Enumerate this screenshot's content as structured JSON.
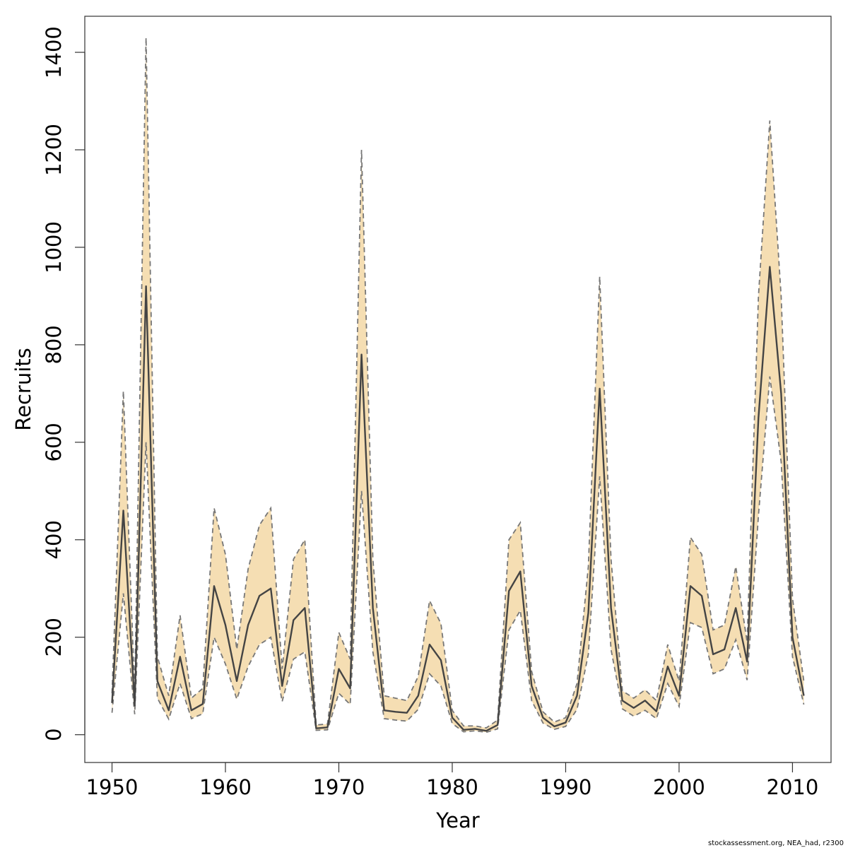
{
  "chart_data": {
    "type": "line",
    "title": "",
    "xlabel": "Year",
    "ylabel": "Recruits",
    "xlim": [
      1947.6,
      2013.4
    ],
    "ylim": [
      -57,
      1474
    ],
    "x_ticks": [
      1950,
      1960,
      1970,
      1980,
      1990,
      2000,
      2010
    ],
    "y_ticks": [
      0,
      200,
      400,
      600,
      800,
      1000,
      1200,
      1400
    ],
    "grid": false,
    "legend": "none",
    "colors": {
      "band": "#f5deb3",
      "line": "#444444",
      "bounds": "#777777"
    },
    "x": [
      1950,
      1951,
      1952,
      1953,
      1954,
      1955,
      1956,
      1957,
      1958,
      1959,
      1960,
      1961,
      1962,
      1963,
      1964,
      1965,
      1966,
      1967,
      1968,
      1969,
      1970,
      1971,
      1972,
      1973,
      1974,
      1975,
      1976,
      1977,
      1978,
      1979,
      1980,
      1981,
      1982,
      1983,
      1984,
      1985,
      1986,
      1987,
      1988,
      1989,
      1990,
      1991,
      1992,
      1993,
      1994,
      1995,
      1996,
      1997,
      1998,
      1999,
      2000,
      2001,
      2002,
      2003,
      2004,
      2005,
      2006,
      2007,
      2008,
      2009,
      2010,
      2011
    ],
    "series": [
      {
        "name": "",
        "values": [
          65,
          460,
          60,
          920,
          110,
          50,
          160,
          50,
          63,
          305,
          225,
          110,
          225,
          285,
          300,
          100,
          235,
          260,
          13,
          15,
          135,
          95,
          780,
          260,
          50,
          47,
          45,
          80,
          185,
          153,
          35,
          10,
          12,
          8,
          20,
          295,
          335,
          100,
          35,
          17,
          25,
          80,
          250,
          710,
          260,
          70,
          55,
          70,
          48,
          140,
          80,
          305,
          285,
          165,
          175,
          260,
          150,
          650,
          960,
          700,
          200,
          80
        ]
      }
    ],
    "upper": [
      85,
      705,
      85,
      1430,
      160,
      80,
      245,
      75,
      95,
      465,
      370,
      175,
      340,
      430,
      465,
      135,
      360,
      400,
      20,
      22,
      210,
      155,
      1200,
      360,
      80,
      75,
      70,
      120,
      275,
      228,
      50,
      18,
      18,
      14,
      30,
      400,
      435,
      130,
      47,
      26,
      35,
      105,
      345,
      940,
      360,
      90,
      75,
      92,
      70,
      185,
      110,
      405,
      370,
      215,
      225,
      345,
      190,
      900,
      1260,
      900,
      280,
      110
    ],
    "lower": [
      45,
      290,
      42,
      600,
      75,
      32,
      105,
      33,
      43,
      200,
      145,
      73,
      140,
      185,
      200,
      68,
      155,
      170,
      9,
      10,
      85,
      62,
      500,
      170,
      33,
      30,
      28,
      52,
      125,
      100,
      23,
      6,
      8,
      5,
      12,
      215,
      255,
      70,
      24,
      11,
      17,
      52,
      165,
      530,
      175,
      53,
      38,
      50,
      33,
      105,
      58,
      230,
      220,
      125,
      135,
      195,
      112,
      450,
      735,
      560,
      160,
      62
    ]
  },
  "caption": "stockassessment.org, NEA_had, r2300"
}
